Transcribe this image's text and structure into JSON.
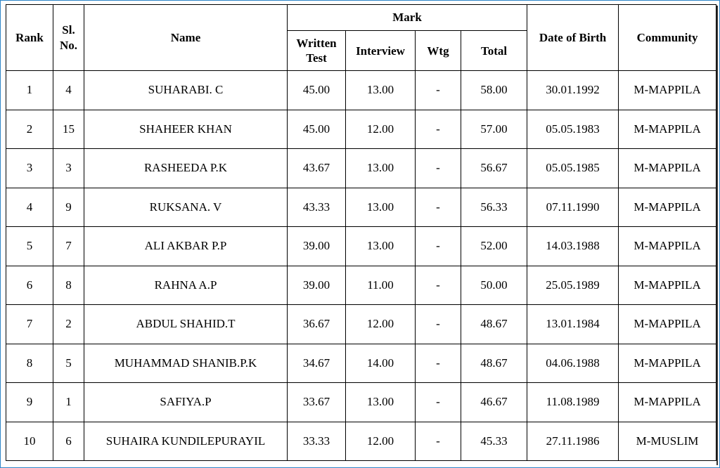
{
  "headers": {
    "rank": "Rank",
    "sl_no": "Sl. No.",
    "name": "Name",
    "mark": "Mark",
    "written_test": "Written Test",
    "interview": "Interview",
    "wtg": "Wtg",
    "total": "Total",
    "dob": "Date of Birth",
    "community": "Community"
  },
  "rows": [
    {
      "rank": "1",
      "sl": "4",
      "name": "SUHARABI. C",
      "written": "45.00",
      "interview": "13.00",
      "wtg": "-",
      "total": "58.00",
      "dob": "30.01.1992",
      "community": "M-MAPPILA"
    },
    {
      "rank": "2",
      "sl": "15",
      "name": "SHAHEER KHAN",
      "written": "45.00",
      "interview": "12.00",
      "wtg": "-",
      "total": "57.00",
      "dob": "05.05.1983",
      "community": "M-MAPPILA"
    },
    {
      "rank": "3",
      "sl": "3",
      "name": "RASHEEDA  P.K",
      "written": "43.67",
      "interview": "13.00",
      "wtg": "-",
      "total": "56.67",
      "dob": "05.05.1985",
      "community": "M-MAPPILA"
    },
    {
      "rank": "4",
      "sl": "9",
      "name": "RUKSANA. V",
      "written": "43.33",
      "interview": "13.00",
      "wtg": "-",
      "total": "56.33",
      "dob": "07.11.1990",
      "community": "M-MAPPILA"
    },
    {
      "rank": "5",
      "sl": "7",
      "name": "ALI AKBAR P.P",
      "written": "39.00",
      "interview": "13.00",
      "wtg": "-",
      "total": "52.00",
      "dob": "14.03.1988",
      "community": "M-MAPPILA"
    },
    {
      "rank": "6",
      "sl": "8",
      "name": "RAHNA A.P",
      "written": "39.00",
      "interview": "11.00",
      "wtg": "-",
      "total": "50.00",
      "dob": "25.05.1989",
      "community": "M-MAPPILA"
    },
    {
      "rank": "7",
      "sl": "2",
      "name": "ABDUL SHAHID.T",
      "written": "36.67",
      "interview": "12.00",
      "wtg": "-",
      "total": "48.67",
      "dob": "13.01.1984",
      "community": "M-MAPPILA"
    },
    {
      "rank": "8",
      "sl": "5",
      "name": "MUHAMMAD SHANIB.P.K",
      "written": "34.67",
      "interview": "14.00",
      "wtg": "-",
      "total": "48.67",
      "dob": "04.06.1988",
      "community": "M-MAPPILA"
    },
    {
      "rank": "9",
      "sl": "1",
      "name": "SAFIYA.P",
      "written": "33.67",
      "interview": "13.00",
      "wtg": "-",
      "total": "46.67",
      "dob": "11.08.1989",
      "community": "M-MAPPILA"
    },
    {
      "rank": "10",
      "sl": "6",
      "name": "SUHAIRA KUNDILEPURAYIL",
      "written": "33.33",
      "interview": "12.00",
      "wtg": "-",
      "total": "45.33",
      "dob": "27.11.1986",
      "community": "M-MUSLIM"
    }
  ]
}
